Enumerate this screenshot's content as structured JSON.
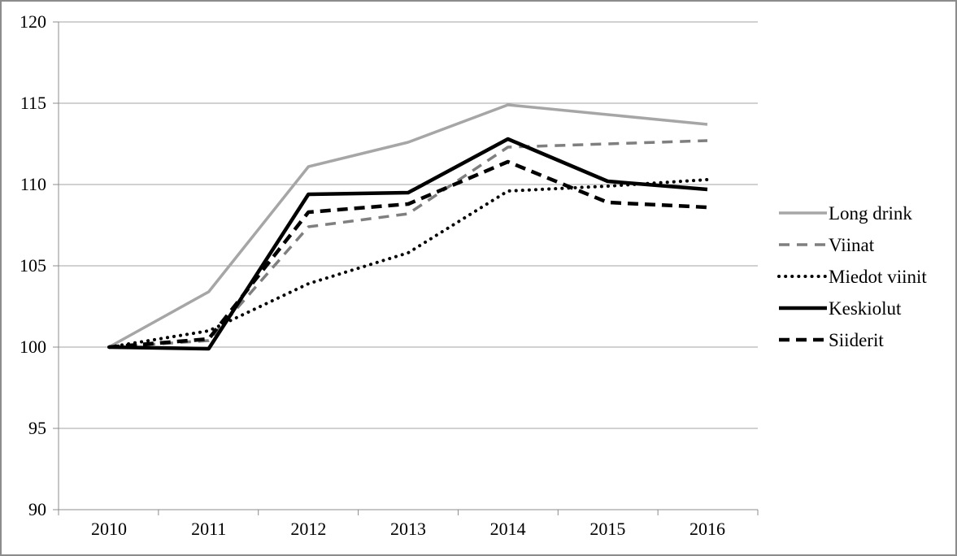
{
  "chart_data": {
    "type": "line",
    "title": "",
    "xlabel": "",
    "ylabel": "",
    "categories": [
      "2010",
      "2011",
      "2012",
      "2013",
      "2014",
      "2015",
      "2016"
    ],
    "series": [
      {
        "name": "Long drink",
        "color": "#a6a6a6",
        "line_style": "solid",
        "thickness": "normal",
        "values": [
          100.0,
          103.4,
          111.1,
          112.6,
          114.9,
          114.3,
          113.7
        ]
      },
      {
        "name": "Viinat",
        "color": "#7f7f7f",
        "line_style": "dashed",
        "thickness": "normal",
        "values": [
          100.0,
          100.4,
          107.4,
          108.2,
          112.3,
          112.5,
          112.7
        ]
      },
      {
        "name": "Miedot viinit",
        "color": "#000000",
        "line_style": "dotted",
        "thickness": "normal",
        "values": [
          100.0,
          101.0,
          103.9,
          105.8,
          109.6,
          109.9,
          110.3
        ]
      },
      {
        "name": "Keskiolut",
        "color": "#000000",
        "line_style": "solid",
        "thickness": "bold",
        "values": [
          100.0,
          99.9,
          109.4,
          109.5,
          112.8,
          110.2,
          109.7
        ]
      },
      {
        "name": "Siiderit",
        "color": "#000000",
        "line_style": "dashed",
        "thickness": "bold",
        "values": [
          100.0,
          100.5,
          108.3,
          108.8,
          111.4,
          108.9,
          108.6
        ]
      }
    ],
    "ylim": [
      90,
      120
    ],
    "ytick_step": 5,
    "grid": true,
    "legend_position": "right",
    "frame_color": "#8c8c8c",
    "axis_color": "#8c8c8c",
    "gridline_color": "#a3a3a3"
  }
}
